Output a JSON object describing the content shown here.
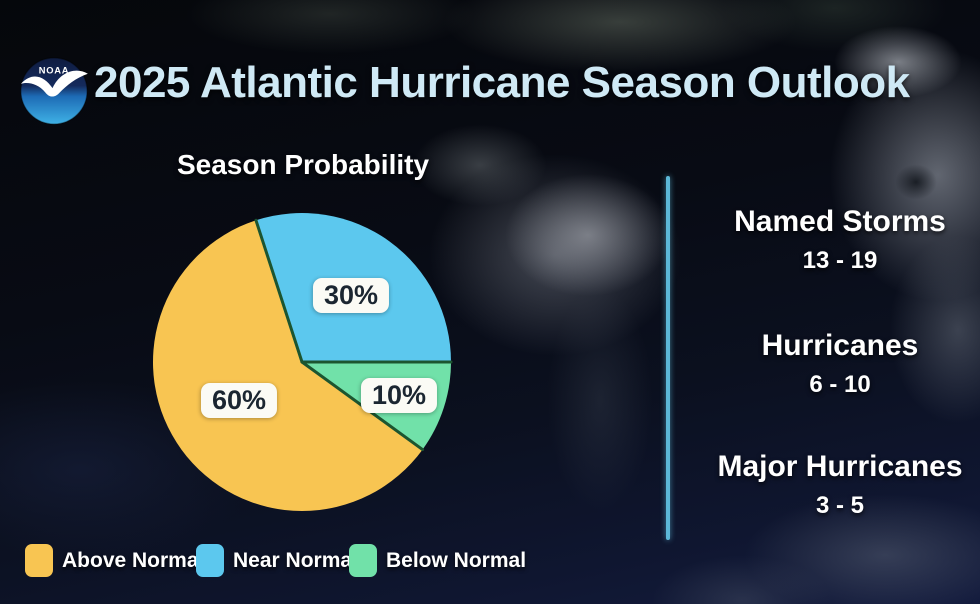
{
  "header": {
    "title": "2025 Atlantic Hurricane Season Outlook",
    "logo_text": "NOAA"
  },
  "chart_data": {
    "type": "pie",
    "title": "Season Probability",
    "start_angle_deg": 126,
    "slices": [
      {
        "name": "Above Normal",
        "value": 60,
        "label": "60%",
        "color": "#F8C552"
      },
      {
        "name": "Near Normal",
        "value": 30,
        "label": "30%",
        "color": "#5CC8EE"
      },
      {
        "name": "Below Normal",
        "value": 10,
        "label": "10%",
        "color": "#71E1A9"
      }
    ],
    "slice_border_color": "#1C5530",
    "legend_position": "bottom"
  },
  "stats": [
    {
      "label": "Named Storms",
      "range": "13 - 19"
    },
    {
      "label": "Hurricanes",
      "range": "6 - 10"
    },
    {
      "label": "Major Hurricanes",
      "range": "3 - 5"
    }
  ],
  "colors": {
    "title_text": "#CFE9F5",
    "divider": "#5CB8D8",
    "label_box_bg": "#FBFBF5",
    "label_box_text": "#1B2631",
    "stat_text": "#FFFFFF"
  }
}
